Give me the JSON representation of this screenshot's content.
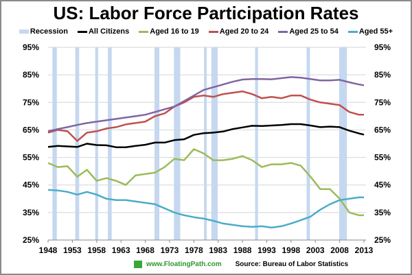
{
  "chart_data": {
    "type": "line",
    "title": "US: Labor Force Participation Rates",
    "xlabel": "",
    "ylabel": "",
    "xlim": [
      1948,
      2013
    ],
    "ylim": [
      25,
      95
    ],
    "x_ticks": [
      "1948",
      "1953",
      "1958",
      "1963",
      "1968",
      "1973",
      "1978",
      "1983",
      "1988",
      "1993",
      "1998",
      "2003",
      "2008",
      "2013"
    ],
    "y_ticks_left": [
      "95%",
      "85%",
      "75%",
      "65%",
      "55%",
      "45%",
      "35%",
      "25%"
    ],
    "y_ticks_right": [
      "95%",
      "85%",
      "75%",
      "65%",
      "55%",
      "45%",
      "35%",
      "25%"
    ],
    "grid": true,
    "legend_position": "top",
    "recessions": [
      [
        1948.9,
        1949.8
      ],
      [
        1953.6,
        1954.4
      ],
      [
        1957.7,
        1958.3
      ],
      [
        1960.3,
        1961.1
      ],
      [
        1969.9,
        1970.9
      ],
      [
        1973.9,
        1975.2
      ],
      [
        1980.1,
        1980.5
      ],
      [
        1981.6,
        1982.9
      ],
      [
        1990.6,
        1991.2
      ],
      [
        2001.2,
        2001.9
      ],
      [
        2007.9,
        2009.5
      ]
    ],
    "legend": [
      {
        "label": "Recession",
        "color": "#c5d8f0"
      },
      {
        "label": "All Citizens",
        "color": "#000000"
      },
      {
        "label": "Aged 16 to 19",
        "color": "#9bbb59"
      },
      {
        "label": "Aged 20 to 24",
        "color": "#c0504d"
      },
      {
        "label": "Aged 25 to 54",
        "color": "#8064a2"
      },
      {
        "label": "Aged 55+",
        "color": "#4bacc6"
      }
    ],
    "x": [
      1948,
      1950,
      1952,
      1954,
      1956,
      1958,
      1960,
      1962,
      1964,
      1966,
      1968,
      1970,
      1972,
      1974,
      1976,
      1978,
      1980,
      1982,
      1984,
      1986,
      1988,
      1990,
      1992,
      1994,
      1996,
      1998,
      2000,
      2002,
      2004,
      2006,
      2008,
      2010,
      2012,
      2013
    ],
    "series": [
      {
        "name": "All Citizens",
        "color": "#000000",
        "values": [
          58.8,
          59.2,
          59.0,
          58.8,
          60.0,
          59.5,
          59.4,
          58.7,
          58.7,
          59.2,
          59.6,
          60.4,
          60.4,
          61.3,
          61.6,
          63.2,
          63.8,
          64.0,
          64.4,
          65.3,
          65.9,
          66.5,
          66.4,
          66.6,
          66.8,
          67.1,
          67.1,
          66.6,
          66.0,
          66.2,
          66.0,
          64.7,
          63.7,
          63.3
        ]
      },
      {
        "name": "Aged 16 to 19",
        "color": "#9bbb59",
        "values": [
          53.0,
          51.5,
          51.8,
          48.0,
          50.5,
          46.5,
          47.5,
          46.5,
          45.0,
          48.5,
          49.0,
          49.5,
          51.5,
          54.5,
          54.0,
          58.0,
          56.5,
          54.0,
          54.0,
          54.5,
          55.5,
          54.0,
          51.5,
          52.5,
          52.5,
          53.0,
          52.0,
          48.0,
          43.5,
          43.5,
          40.0,
          35.0,
          34.0,
          34.0
        ]
      },
      {
        "name": "Aged 20 to 24",
        "color": "#c0504d",
        "values": [
          64.0,
          65.0,
          64.5,
          61.0,
          64.0,
          64.5,
          65.5,
          66.0,
          67.0,
          67.5,
          68.0,
          70.0,
          71.0,
          73.5,
          75.0,
          77.0,
          77.5,
          77.0,
          78.0,
          78.5,
          79.0,
          78.0,
          76.5,
          77.0,
          76.5,
          77.5,
          77.5,
          76.0,
          75.0,
          74.5,
          74.0,
          71.5,
          70.5,
          70.5
        ]
      },
      {
        "name": "Aged 25 to 54",
        "color": "#8064a2",
        "values": [
          64.5,
          65.3,
          66.0,
          66.8,
          67.5,
          68.0,
          68.5,
          69.0,
          69.5,
          70.0,
          70.5,
          71.5,
          72.5,
          73.5,
          75.5,
          77.5,
          79.5,
          80.5,
          81.5,
          82.5,
          83.3,
          83.5,
          83.5,
          83.4,
          83.8,
          84.2,
          84.0,
          83.5,
          83.0,
          83.0,
          83.2,
          82.3,
          81.5,
          81.2
        ]
      },
      {
        "name": "Aged 55+",
        "color": "#4bacc6",
        "values": [
          43.2,
          43.0,
          42.5,
          41.5,
          42.5,
          41.5,
          40.0,
          39.5,
          39.5,
          39.0,
          38.5,
          38.0,
          36.5,
          35.0,
          34.0,
          33.3,
          32.8,
          32.0,
          31.0,
          30.5,
          30.0,
          29.8,
          30.0,
          29.5,
          30.0,
          31.0,
          32.2,
          33.5,
          36.0,
          38.0,
          39.5,
          40.0,
          40.5,
          40.5
        ]
      }
    ]
  },
  "footer": {
    "site": "www.FloatingPath.com",
    "source": "Source: Bureau of Labor Statistics"
  }
}
